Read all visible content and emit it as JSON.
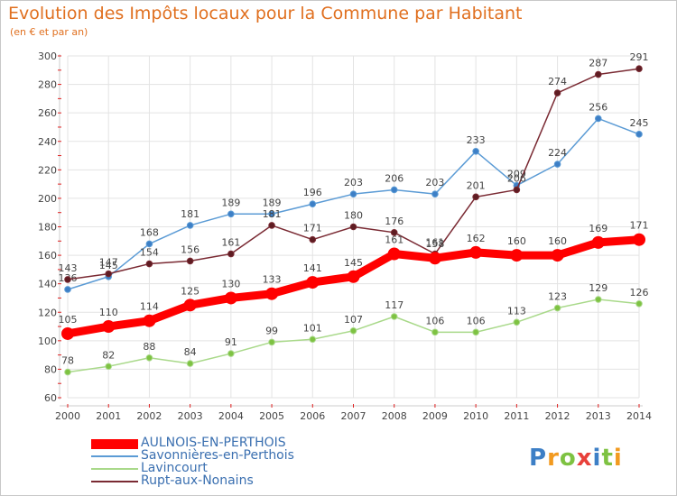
{
  "title": "Evolution des Impôts locaux pour la Commune par Habitant",
  "subtitle": "(en € et par an)",
  "logo": {
    "letters": [
      {
        "char": "P",
        "color": "#3d7fc6"
      },
      {
        "char": "r",
        "color": "#f29a1f"
      },
      {
        "char": "o",
        "color": "#7ec242"
      },
      {
        "char": "x",
        "color": "#e8403a"
      },
      {
        "char": "i",
        "color": "#3d7fc6"
      },
      {
        "char": "t",
        "color": "#7ec242"
      },
      {
        "char": "i",
        "color": "#f29a1f"
      }
    ]
  },
  "chart_data": {
    "type": "line",
    "x": [
      2000,
      2001,
      2002,
      2003,
      2004,
      2005,
      2006,
      2007,
      2008,
      2009,
      2010,
      2011,
      2012,
      2013,
      2014
    ],
    "ylim": [
      60,
      300
    ],
    "yticks": [
      60,
      80,
      100,
      120,
      140,
      160,
      180,
      200,
      220,
      240,
      260,
      280,
      300
    ],
    "grid": true,
    "legend_placement": "bottom-left",
    "series": [
      {
        "name": "Savonnières-en-Perthois",
        "color": "#5b9bd5",
        "marker": "#3d7fc6",
        "values": [
          136,
          145,
          168,
          181,
          189,
          189,
          196,
          203,
          206,
          203,
          233,
          209,
          224,
          256,
          245
        ]
      },
      {
        "name": "Lavincourt",
        "color": "#a9d98a",
        "marker": "#7ec242",
        "values": [
          78,
          82,
          88,
          84,
          91,
          99,
          101,
          107,
          117,
          106,
          106,
          113,
          123,
          129,
          126
        ]
      },
      {
        "name": "Rupt-aux-Nonains",
        "color": "#7a2a33",
        "marker": "#5e1c22",
        "values": [
          143,
          147,
          154,
          156,
          161,
          181,
          171,
          180,
          176,
          161,
          201,
          206,
          274,
          287,
          291
        ]
      },
      {
        "name": "AULNOIS-EN-PERTHOIS",
        "color": "#ff0000",
        "marker": "#ff0000",
        "values": [
          105,
          110,
          114,
          125,
          130,
          133,
          141,
          145,
          161,
          158,
          162,
          160,
          160,
          169,
          171
        ]
      }
    ],
    "legend_order": [
      3,
      0,
      1,
      2
    ]
  }
}
